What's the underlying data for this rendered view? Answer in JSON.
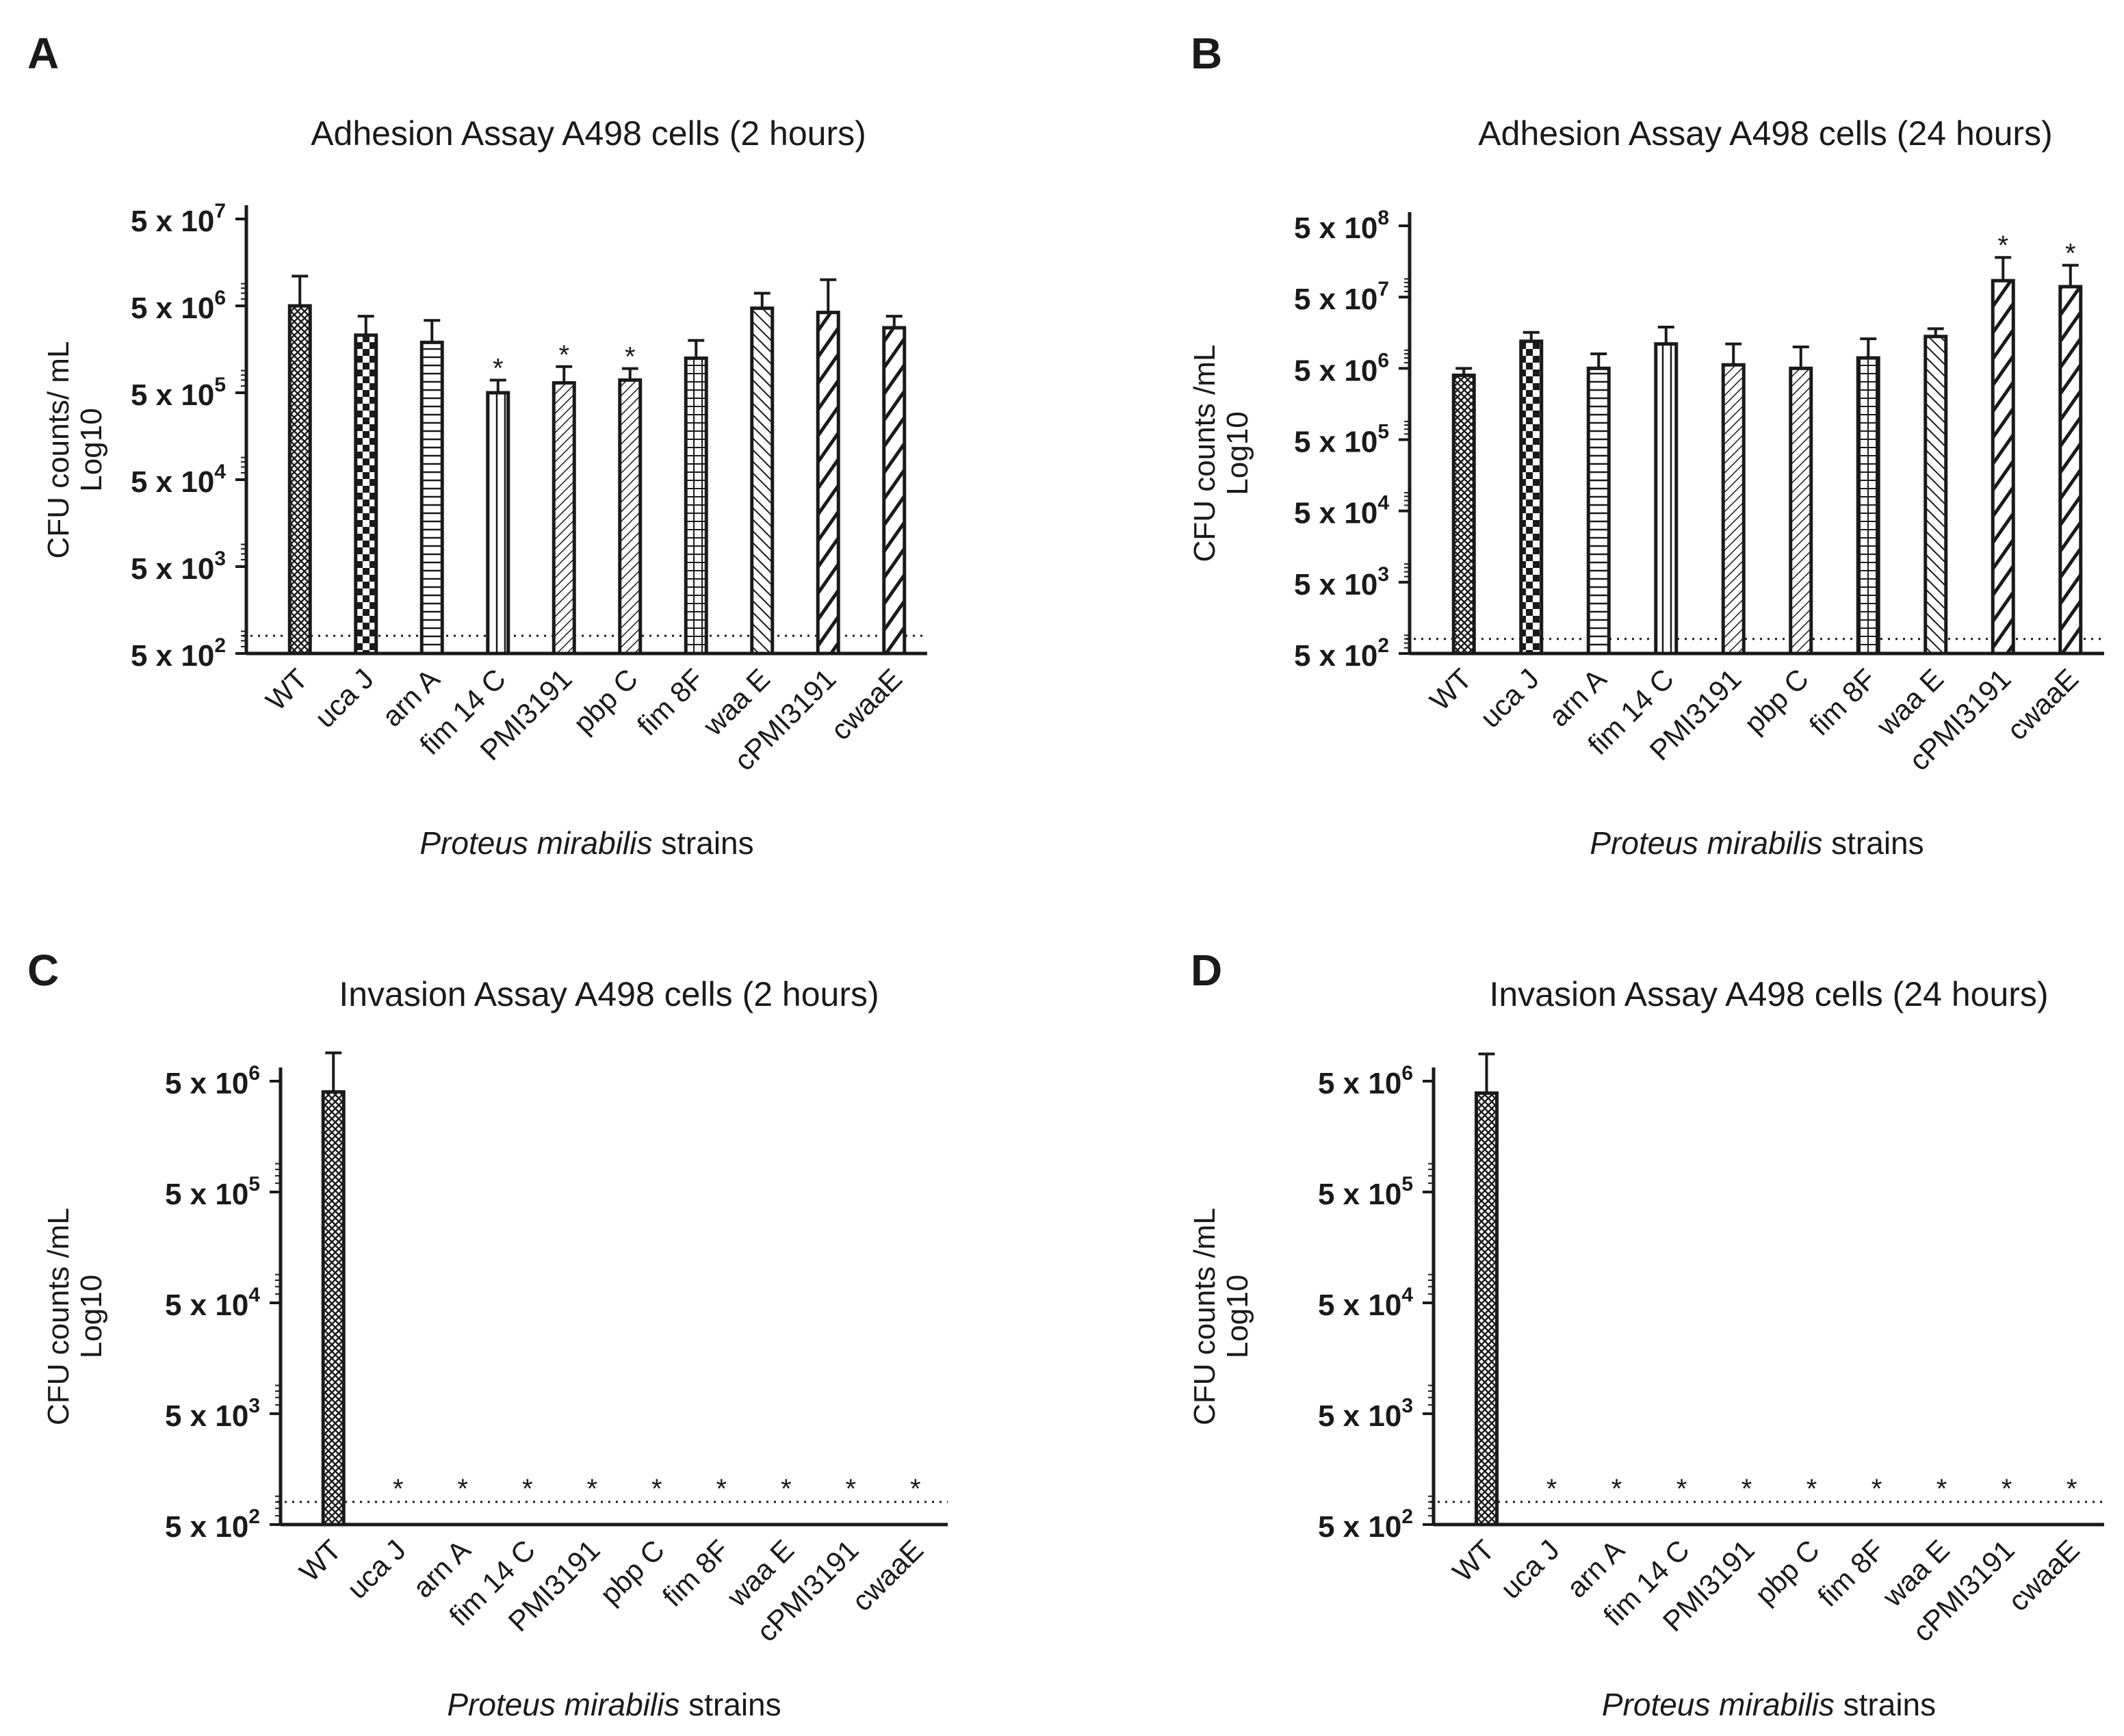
{
  "figure": {
    "categories": [
      "WT",
      "uca J",
      "arn A",
      "fim 14 C",
      "PMI3191",
      "pbp C",
      "fim 8F",
      "waa E",
      "cPMI3191",
      "cwaaE"
    ],
    "bar_patterns": [
      "crosshatch",
      "checker",
      "hlines",
      "vlines",
      "diag-fine",
      "diag-fine",
      "grid",
      "diag-med",
      "diag-bold",
      "diag-bold"
    ],
    "xlabel_italic": "Proteus mirabilis",
    "xlabel_rest": " strains",
    "colors": {
      "ink": "#1a1a1a",
      "background": "#ffffff"
    }
  },
  "chart_data": [
    {
      "panel": "A",
      "type": "bar",
      "title": "Adhesion Assay A498 cells (2 hours)",
      "ylabel_line1": "CFU counts/ mL",
      "ylabel_line2": "Log10",
      "yscale": "log",
      "ylim": [
        500,
        50000000
      ],
      "ticks": [
        {
          "value": 500,
          "base": "5 x 10",
          "exp": "2"
        },
        {
          "value": 5000,
          "base": "5 x 10",
          "exp": "3"
        },
        {
          "value": 50000,
          "base": "5 x 10",
          "exp": "4"
        },
        {
          "value": 500000,
          "base": "5 x 10",
          "exp": "5"
        },
        {
          "value": 5000000,
          "base": "5 x 10",
          "exp": "6"
        },
        {
          "value": 50000000,
          "base": "5 x 10",
          "exp": "7"
        }
      ],
      "detection_limit": 800,
      "values": [
        5000000,
        2300000,
        1900000,
        500000,
        650000,
        700000,
        1250000,
        4700000,
        4200000,
        2800000
      ],
      "error_upper": [
        11000000,
        3800000,
        3400000,
        700000,
        1000000,
        950000,
        2000000,
        7000000,
        10000000,
        3800000
      ],
      "significance": [
        "",
        "",
        "",
        "*",
        "*",
        "*",
        "",
        "",
        "",
        ""
      ]
    },
    {
      "panel": "B",
      "type": "bar",
      "title": "Adhesion Assay A498 cells (24 hours)",
      "ylabel_line1": "CFU counts /mL",
      "ylabel_line2": "Log10",
      "yscale": "log",
      "ylim": [
        500,
        50000000
      ],
      "ticks": [
        {
          "value": 500,
          "base": "5 x 10",
          "exp": "2"
        },
        {
          "value": 5000,
          "base": "5 x 10",
          "exp": "3"
        },
        {
          "value": 50000,
          "base": "5 x 10",
          "exp": "4"
        },
        {
          "value": 500000,
          "base": "5 x 10",
          "exp": "5"
        },
        {
          "value": 5000000,
          "base": "5 x 10",
          "exp": "6"
        },
        {
          "value": 50000000,
          "base": "5 x 10",
          "exp": "7"
        },
        {
          "value": 500000000,
          "base": "5 x 10",
          "exp": "8"
        }
      ],
      "detection_limit": 800,
      "values": [
        4000000,
        12000000,
        5000000,
        11000000,
        5600000,
        5000000,
        7000000,
        14000000,
        85000000,
        70000000
      ],
      "error_upper": [
        5000000,
        16000000,
        8000000,
        19000000,
        11000000,
        10000000,
        13000000,
        18000000,
        180000000,
        140000000
      ],
      "significance": [
        "",
        "",
        "",
        "",
        "",
        "",
        "",
        "",
        "*",
        "*"
      ]
    },
    {
      "panel": "C",
      "type": "bar",
      "title": "Invasion Assay A498 cells (2 hours)",
      "ylabel_line1": "CFU counts /mL",
      "ylabel_line2": "Log10",
      "yscale": "log",
      "ylim": [
        500,
        5000000
      ],
      "ticks": [
        {
          "value": 500,
          "base": "5 x 10",
          "exp": "2"
        },
        {
          "value": 5000,
          "base": "5 x 10",
          "exp": "3"
        },
        {
          "value": 50000,
          "base": "5 x 10",
          "exp": "4"
        },
        {
          "value": 500000,
          "base": "5 x 10",
          "exp": "5"
        },
        {
          "value": 5000000,
          "base": "5 x 10",
          "exp": "6"
        }
      ],
      "detection_limit": 800,
      "values": [
        4000000,
        0,
        0,
        0,
        0,
        0,
        0,
        0,
        0,
        0
      ],
      "error_upper": [
        9000000,
        0,
        0,
        0,
        0,
        0,
        0,
        0,
        0,
        0
      ],
      "significance": [
        "",
        "*",
        "*",
        "*",
        "*",
        "*",
        "*",
        "*",
        "*",
        "*"
      ]
    },
    {
      "panel": "D",
      "type": "bar",
      "title": "Invasion Assay A498 cells (24 hours)",
      "ylabel_line1": "CFU counts /mL",
      "ylabel_line2": "Log10",
      "yscale": "log",
      "ylim": [
        500,
        5000000
      ],
      "ticks": [
        {
          "value": 500,
          "base": "5 x 10",
          "exp": "2"
        },
        {
          "value": 5000,
          "base": "5 x 10",
          "exp": "3"
        },
        {
          "value": 50000,
          "base": "5 x 10",
          "exp": "4"
        },
        {
          "value": 500000,
          "base": "5 x 10",
          "exp": "5"
        },
        {
          "value": 5000000,
          "base": "5 x 10",
          "exp": "6"
        }
      ],
      "detection_limit": 800,
      "values": [
        3900000,
        0,
        0,
        0,
        0,
        0,
        0,
        0,
        0,
        0
      ],
      "error_upper": [
        8800000,
        0,
        0,
        0,
        0,
        0,
        0,
        0,
        0,
        0
      ],
      "significance": [
        "",
        "*",
        "*",
        "*",
        "*",
        "*",
        "*",
        "*",
        "*",
        "*"
      ]
    }
  ]
}
